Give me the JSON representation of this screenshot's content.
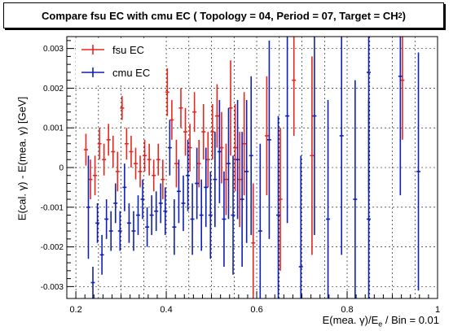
{
  "title": {
    "prefix": "Compare fsu EC with cmu EC ( Topology = 04, Period = 07, Target = CH",
    "sub": "2",
    "suffix": " )"
  },
  "axes": {
    "ylabel": "E(cal. γ) - E(mea. γ) [GeV]",
    "xlabel_prefix": "E(mea. γ)/E",
    "xlabel_sub": "e",
    "xlabel_suffix": " / Bin = 0.01"
  },
  "legend": [
    {
      "name": "fsu EC",
      "color": "#e8261e"
    },
    {
      "name": "cmu EC",
      "color": "#0f1fb8"
    }
  ],
  "chart_data": {
    "type": "scatter",
    "title": "Compare fsu EC with cmu EC ( Topology = 04, Period = 07, Target = CH2 )",
    "xlabel": "E(mea. γ)/Ee / Bin = 0.01",
    "ylabel": "E(cal. γ) - E(mea. γ) [GeV]",
    "xlim": [
      0.18,
      1.0
    ],
    "ylim": [
      -0.0033,
      0.0033
    ],
    "x_ticks": [
      0.2,
      0.4,
      0.6,
      0.8,
      1.0
    ],
    "x_tick_labels": [
      "0.2",
      "0.4",
      "0.6",
      "0.8",
      "1"
    ],
    "y_ticks": [
      -0.003,
      -0.002,
      -0.001,
      0,
      0.001,
      0.002,
      0.003
    ],
    "y_tick_labels": [
      "-0.003",
      "-0.002",
      "-0.001",
      "0",
      "0.001",
      "0.002",
      "0.003"
    ],
    "grid": true,
    "legend_position": "top-left",
    "series": [
      {
        "name": "fsu EC",
        "color": "#e8261e",
        "points": [
          {
            "x": 0.225,
            "y": 0.00045,
            "err": 0.0004
          },
          {
            "x": 0.235,
            "y": -0.0003,
            "err": 0.0005
          },
          {
            "x": 0.245,
            "y": -0.0002,
            "err": 0.0005
          },
          {
            "x": 0.255,
            "y": 0.0006,
            "err": 0.0004
          },
          {
            "x": 0.265,
            "y": 0.0002,
            "err": 0.0004
          },
          {
            "x": 0.275,
            "y": 0.0007,
            "err": 0.0004
          },
          {
            "x": 0.285,
            "y": 0.0004,
            "err": 0.0004
          },
          {
            "x": 0.295,
            "y": -0.0001,
            "err": 0.0005
          },
          {
            "x": 0.305,
            "y": 0.0015,
            "err": 0.0003
          },
          {
            "x": 0.315,
            "y": 0.0006,
            "err": 0.0004
          },
          {
            "x": 0.325,
            "y": 0.0004,
            "err": 0.0004
          },
          {
            "x": 0.335,
            "y": 0.0001,
            "err": 0.0004
          },
          {
            "x": 0.345,
            "y": -0.0001,
            "err": 0.0004
          },
          {
            "x": 0.355,
            "y": 0.0003,
            "err": 0.0004
          },
          {
            "x": 0.365,
            "y": 0.0002,
            "err": 0.0004
          },
          {
            "x": 0.375,
            "y": -0.0002,
            "err": 0.0004
          },
          {
            "x": 0.385,
            "y": 0.0002,
            "err": 0.0004
          },
          {
            "x": 0.395,
            "y": -0.0003,
            "err": 0.0005
          },
          {
            "x": 0.405,
            "y": 0.0019,
            "err": 0.0006
          },
          {
            "x": 0.415,
            "y": 0.0012,
            "err": 0.0005
          },
          {
            "x": 0.425,
            "y": 0.0001,
            "err": 0.0006
          },
          {
            "x": 0.435,
            "y": 0.0015,
            "err": 0.0005
          },
          {
            "x": 0.445,
            "y": 0.0009,
            "err": 0.0006
          },
          {
            "x": 0.455,
            "y": 0.0005,
            "err": 0.0006
          },
          {
            "x": 0.465,
            "y": 0.0014,
            "err": 0.0005
          },
          {
            "x": 0.475,
            "y": 0.0001,
            "err": 0.0006
          },
          {
            "x": 0.485,
            "y": 0.0009,
            "err": 0.0007
          },
          {
            "x": 0.495,
            "y": 0.0002,
            "err": 0.0007
          },
          {
            "x": 0.505,
            "y": 0.0009,
            "err": 0.0007
          },
          {
            "x": 0.515,
            "y": 0.0013,
            "err": 0.0008
          },
          {
            "x": 0.525,
            "y": 0.0005,
            "err": 0.0009
          },
          {
            "x": 0.535,
            "y": -0.0003,
            "err": 0.0009
          },
          {
            "x": 0.545,
            "y": 0.0015,
            "err": 0.0012
          },
          {
            "x": 0.555,
            "y": 0.0005,
            "err": 0.0011
          },
          {
            "x": 0.565,
            "y": -0.0003,
            "err": 0.0012
          },
          {
            "x": 0.575,
            "y": 0.0006,
            "err": 0.0013
          },
          {
            "x": 0.595,
            "y": -0.0019,
            "err": 0.0015
          },
          {
            "x": 0.625,
            "y": 0.0008,
            "err": 0.0015
          },
          {
            "x": 0.655,
            "y": -0.0008,
            "err": 0.0018
          },
          {
            "x": 0.685,
            "y": 0.0022,
            "err": 0.0014
          },
          {
            "x": 0.725,
            "y": 0.0003,
            "err": 0.0025
          },
          {
            "x": 0.925,
            "y": 0.0022,
            "err": 0.0015
          }
        ]
      },
      {
        "name": "cmu EC",
        "color": "#0f1fb8",
        "points": [
          {
            "x": 0.225,
            "y": -0.001,
            "err": 0.0013
          },
          {
            "x": 0.235,
            "y": -0.0029,
            "err": 0.0004
          },
          {
            "x": 0.245,
            "y": -0.0014,
            "err": 0.0005
          },
          {
            "x": 0.255,
            "y": -0.0022,
            "err": 0.0005
          },
          {
            "x": 0.265,
            "y": -0.0013,
            "err": 0.0005
          },
          {
            "x": 0.275,
            "y": -0.0016,
            "err": 0.0005
          },
          {
            "x": 0.285,
            "y": -0.0009,
            "err": 0.0005
          },
          {
            "x": 0.295,
            "y": -0.0016,
            "err": 0.0005
          },
          {
            "x": 0.305,
            "y": -0.0005,
            "err": 0.0006
          },
          {
            "x": 0.315,
            "y": -0.0014,
            "err": 0.0005
          },
          {
            "x": 0.325,
            "y": -0.0016,
            "err": 0.0005
          },
          {
            "x": 0.335,
            "y": -0.0012,
            "err": 0.0005
          },
          {
            "x": 0.345,
            "y": -0.0008,
            "err": 0.0005
          },
          {
            "x": 0.355,
            "y": -0.0015,
            "err": 0.0005
          },
          {
            "x": 0.365,
            "y": -0.0012,
            "err": 0.0005
          },
          {
            "x": 0.375,
            "y": -0.0011,
            "err": 0.0005
          },
          {
            "x": 0.385,
            "y": -0.0009,
            "err": 0.0005
          },
          {
            "x": 0.395,
            "y": -0.0011,
            "err": 0.0006
          },
          {
            "x": 0.405,
            "y": 0.0005,
            "err": 0.0007
          },
          {
            "x": 0.415,
            "y": -0.0015,
            "err": 0.0007
          },
          {
            "x": 0.425,
            "y": -0.0006,
            "err": 0.0008
          },
          {
            "x": 0.435,
            "y": -0.0009,
            "err": 0.0007
          },
          {
            "x": 0.445,
            "y": -0.0002,
            "err": 0.0009
          },
          {
            "x": 0.455,
            "y": -0.0013,
            "err": 0.0009
          },
          {
            "x": 0.465,
            "y": -0.0004,
            "err": 0.0009
          },
          {
            "x": 0.475,
            "y": -0.0012,
            "err": 0.0009
          },
          {
            "x": 0.485,
            "y": -0.0005,
            "err": 0.001
          },
          {
            "x": 0.495,
            "y": -0.0012,
            "err": 0.0011
          },
          {
            "x": 0.505,
            "y": -0.0003,
            "err": 0.0012
          },
          {
            "x": 0.515,
            "y": 0.0004,
            "err": 0.0013
          },
          {
            "x": 0.525,
            "y": -0.0013,
            "err": 0.0012
          },
          {
            "x": 0.535,
            "y": 0.0001,
            "err": 0.0014
          },
          {
            "x": 0.545,
            "y": -0.0012,
            "err": 0.0015
          },
          {
            "x": 0.555,
            "y": 0.0002,
            "err": 0.0015
          },
          {
            "x": 0.565,
            "y": -0.0008,
            "err": 0.0017
          },
          {
            "x": 0.575,
            "y": -0.0001,
            "err": 0.0018
          },
          {
            "x": 0.585,
            "y": 0.0003,
            "err": 0.002
          },
          {
            "x": 0.605,
            "y": -0.0016,
            "err": 0.0022
          },
          {
            "x": 0.625,
            "y": 0.0007,
            "err": 0.0025
          },
          {
            "x": 0.645,
            "y": -0.0012,
            "err": 0.0025
          },
          {
            "x": 0.665,
            "y": 0.0013,
            "err": 0.0027
          },
          {
            "x": 0.695,
            "y": -0.0025,
            "err": 0.0028
          },
          {
            "x": 0.725,
            "y": 0.0013,
            "err": 0.003
          },
          {
            "x": 0.755,
            "y": -0.0013,
            "err": 0.003
          },
          {
            "x": 0.785,
            "y": 0.0008,
            "err": 0.003
          },
          {
            "x": 0.815,
            "y": -0.0008,
            "err": 0.003
          },
          {
            "x": 0.845,
            "y": 0.0024,
            "err": 0.003
          },
          {
            "x": 0.845,
            "y": -0.0013,
            "err": 0.003
          },
          {
            "x": 0.915,
            "y": 0.0023,
            "err": 0.003
          },
          {
            "x": 0.955,
            "y": -0.0001,
            "err": 0.003
          }
        ]
      }
    ]
  }
}
